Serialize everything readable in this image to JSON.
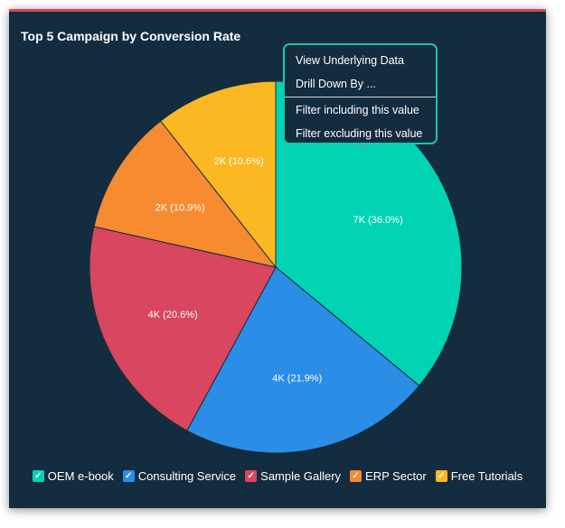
{
  "chart_title": "Top 5 Campaign by Conversion Rate",
  "context_menu": {
    "items": [
      {
        "label": "View Underlying Data"
      },
      {
        "label": "Drill Down By ..."
      },
      {
        "label": "Filter including this value"
      },
      {
        "label": "Filter excluding this value"
      }
    ]
  },
  "chart_data": {
    "type": "pie",
    "title": "Top 5 Campaign by Conversion Rate",
    "legend_position": "bottom",
    "slices": [
      {
        "name": "OEM e-book",
        "percent": 36.0,
        "value_label": "7K",
        "label": "7K (36.0%)",
        "color": "#00d4b4"
      },
      {
        "name": "Consulting Service",
        "percent": 21.9,
        "value_label": "4K",
        "label": "4K (21.9%)",
        "color": "#2b8de6"
      },
      {
        "name": "Sample Gallery",
        "percent": 20.6,
        "value_label": "4K",
        "label": "4K (20.6%)",
        "color": "#d8465f"
      },
      {
        "name": "ERP Sector",
        "percent": 10.9,
        "value_label": "2K",
        "label": "2K (10.9%)",
        "color": "#f68b2f"
      },
      {
        "name": "Free Tutorials",
        "percent": 10.6,
        "value_label": "2K",
        "label": "2K (10.6%)",
        "color": "#fcb823"
      }
    ]
  },
  "legend": {
    "items": [
      {
        "label": "OEM e-book",
        "color": "#00d4b4",
        "checked": true
      },
      {
        "label": "Consulting Service",
        "color": "#2b8de6",
        "checked": true
      },
      {
        "label": "Sample Gallery",
        "color": "#d8465f",
        "checked": true
      },
      {
        "label": "ERP Sector",
        "color": "#f68b2f",
        "checked": true
      },
      {
        "label": "Free Tutorials",
        "color": "#fcb823",
        "checked": true
      }
    ],
    "check_glyph": "✓"
  }
}
